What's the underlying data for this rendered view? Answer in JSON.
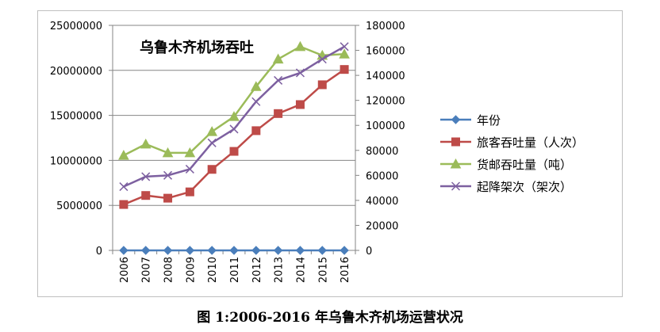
{
  "figure_caption": "图 1:2006-2016 年乌鲁木齐机场运营状况",
  "chart_data": {
    "type": "line",
    "title": "乌鲁木齐机场吞吐",
    "categories": [
      "2006",
      "2007",
      "2008",
      "2009",
      "2010",
      "2011",
      "2012",
      "2013",
      "2014",
      "2015",
      "2016"
    ],
    "y_left": {
      "min": 0,
      "max": 25000000,
      "ticks": [
        "0",
        "5000000",
        "10000000",
        "15000000",
        "20000000",
        "25000000"
      ]
    },
    "y_right": {
      "min": 0,
      "max": 180000,
      "ticks": [
        "0",
        "20000",
        "40000",
        "60000",
        "80000",
        "100000",
        "120000",
        "140000",
        "160000",
        "180000"
      ]
    },
    "grid": true,
    "legend_position": "right",
    "series": [
      {
        "name": "年份",
        "axis": "right",
        "color": "#4a7ebb",
        "marker": "diamond",
        "values": [
          2006,
          2007,
          2008,
          2009,
          2010,
          2011,
          2012,
          2013,
          2014,
          2015,
          2016
        ]
      },
      {
        "name": "旅客吞吐量（人次）",
        "axis": "left",
        "color": "#be4b48",
        "marker": "square",
        "values": [
          5100000,
          6100000,
          5800000,
          6500000,
          9000000,
          11000000,
          13300000,
          15200000,
          16200000,
          18400000,
          20100000
        ]
      },
      {
        "name": "货邮吞吐量（吨）",
        "axis": "right",
        "color": "#9bbb59",
        "marker": "triangle",
        "values": [
          76000,
          85000,
          78000,
          78000,
          95000,
          107000,
          131000,
          153000,
          163000,
          156000,
          157000
        ]
      },
      {
        "name": "起降架次（架次）",
        "axis": "right",
        "color": "#7d60a0",
        "marker": "x",
        "values": [
          51000,
          59000,
          60000,
          65000,
          86000,
          97000,
          119000,
          136000,
          142000,
          153000,
          163000
        ]
      }
    ]
  }
}
